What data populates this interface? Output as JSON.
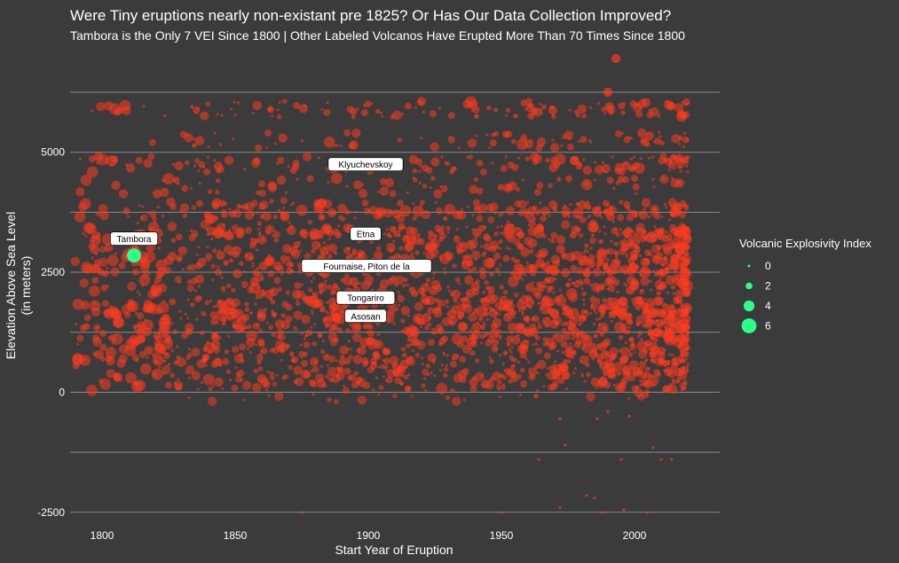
{
  "chart_data": {
    "type": "scatter",
    "title": "Were Tiny eruptions nearly non-existant pre 1825? Or Has Our Data Collection Improved?",
    "subtitle": "Tambora is the Only 7 VEI Since 1800 | Other Labeled Volcanos Have Erupted More Than 70 Times Since 1800",
    "xlabel": "Start Year of Eruption",
    "ylabel": "Elevation Above Sea Level\n(in meters)",
    "xlim": [
      1788,
      2032
    ],
    "ylim": [
      -2800,
      7100
    ],
    "x_ticks": [
      1800,
      1850,
      1900,
      1950,
      2000
    ],
    "y_ticks": [
      -2500,
      0,
      2500,
      5000
    ],
    "grid": true,
    "legend": {
      "title": "Volcanic Explosivity Index",
      "position": "right",
      "entries": [
        0,
        2,
        4,
        6
      ],
      "color": "#2bff88"
    },
    "colors": {
      "points": "#ff3b1f",
      "highlight": "#2bff88",
      "background": "#3b3b3b",
      "grid": "#8a8a8a",
      "text": "#ffffff"
    },
    "highlight": {
      "label": "Tambora",
      "x": 1812,
      "y": 2850,
      "vei": 7
    },
    "labels": [
      {
        "text": "Klyuchevskoy",
        "x": 1899,
        "y": 4750
      },
      {
        "text": "Etna",
        "x": 1899,
        "y": 3300
      },
      {
        "text": "Fournaise, Piton de la",
        "x": 1899,
        "y": 2630
      },
      {
        "text": "Tongariro",
        "x": 1899,
        "y": 1970
      },
      {
        "text": "Asosan",
        "x": 1899,
        "y": 1590
      }
    ],
    "elevation_bands": [
      {
        "y": 5900,
        "weight": 0.9,
        "x_from": 1790,
        "x_to": 2020
      },
      {
        "y": 5250,
        "weight": 0.55,
        "x_from": 1815,
        "x_to": 2020
      },
      {
        "y": 4750,
        "weight": 1.0,
        "x_from": 1790,
        "x_to": 2020
      },
      {
        "y": 4300,
        "weight": 0.55,
        "x_from": 1790,
        "x_to": 2020
      },
      {
        "y": 3800,
        "weight": 1.0,
        "x_from": 1790,
        "x_to": 2020
      },
      {
        "y": 3300,
        "weight": 1.4,
        "x_from": 1790,
        "x_to": 2020
      },
      {
        "y": 2900,
        "weight": 1.3,
        "x_from": 1790,
        "x_to": 2020
      },
      {
        "y": 2600,
        "weight": 1.2,
        "x_from": 1790,
        "x_to": 2020
      },
      {
        "y": 2200,
        "weight": 1.1,
        "x_from": 1790,
        "x_to": 2020
      },
      {
        "y": 1800,
        "weight": 1.6,
        "x_from": 1790,
        "x_to": 2020
      },
      {
        "y": 1500,
        "weight": 1.4,
        "x_from": 1790,
        "x_to": 2020
      },
      {
        "y": 1150,
        "weight": 1.2,
        "x_from": 1790,
        "x_to": 2020
      },
      {
        "y": 800,
        "weight": 1.1,
        "x_from": 1790,
        "x_to": 2020
      },
      {
        "y": 500,
        "weight": 0.9,
        "x_from": 1790,
        "x_to": 2020
      },
      {
        "y": 200,
        "weight": 0.6,
        "x_from": 1790,
        "x_to": 2020
      }
    ],
    "outliers": [
      {
        "x": 1993,
        "y": 6950,
        "vei": 3
      },
      {
        "x": 1990,
        "y": 6250,
        "vei": 3
      },
      {
        "x": 1875,
        "y": -2500,
        "vei": 0
      },
      {
        "x": 1950,
        "y": -2500,
        "vei": 0
      },
      {
        "x": 1972,
        "y": -2400,
        "vei": 0
      },
      {
        "x": 1982,
        "y": -2150,
        "vei": 0
      },
      {
        "x": 1985,
        "y": -2200,
        "vei": 0
      },
      {
        "x": 1988,
        "y": -2500,
        "vei": 0
      },
      {
        "x": 1996,
        "y": -2450,
        "vei": 0
      },
      {
        "x": 2005,
        "y": -2500,
        "vei": 0
      },
      {
        "x": 1964,
        "y": -1400,
        "vei": 0
      },
      {
        "x": 1974,
        "y": -1100,
        "vei": 0
      },
      {
        "x": 1995,
        "y": -1400,
        "vei": 0
      },
      {
        "x": 2007,
        "y": -1150,
        "vei": 0
      },
      {
        "x": 2010,
        "y": -1400,
        "vei": 0
      },
      {
        "x": 2014,
        "y": -1400,
        "vei": 0
      },
      {
        "x": 1972,
        "y": -550,
        "vei": 0
      },
      {
        "x": 1986,
        "y": -550,
        "vei": 0
      },
      {
        "x": 1998,
        "y": -500,
        "vei": 0
      },
      {
        "x": 1990,
        "y": -400,
        "vei": 0
      }
    ],
    "density_note": "Thousands of semi-transparent red points; sizes by VEI; more small points after 1825"
  }
}
